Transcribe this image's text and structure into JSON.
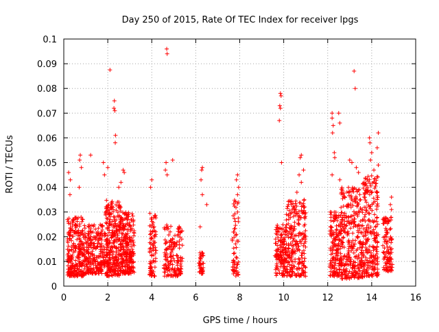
{
  "chart_data": {
    "type": "scatter",
    "title": "Day 250 of 2015, Rate Of TEC Index for receiver lpgs",
    "xlabel": "GPS time / hours",
    "ylabel": "ROTI / TECUs",
    "xlim": [
      0,
      16
    ],
    "ylim": [
      0,
      0.1
    ],
    "x_ticks": [
      0,
      2,
      4,
      6,
      8,
      10,
      12,
      14,
      16
    ],
    "y_ticks": [
      0,
      0.01,
      0.02,
      0.03,
      0.04,
      0.05,
      0.06,
      0.07,
      0.08,
      0.09,
      0.1
    ],
    "grid": true,
    "marker": "+",
    "marker_color": "#ff0000",
    "series": [
      {
        "name": "lpgs ROTI",
        "dense_clusters": [
          {
            "x_range": [
              0.15,
              0.9
            ],
            "y_range": [
              0.004,
              0.028
            ],
            "count": 260
          },
          {
            "x_range": [
              0.9,
              1.9
            ],
            "y_range": [
              0.005,
              0.025
            ],
            "count": 260
          },
          {
            "x_range": [
              1.9,
              2.6
            ],
            "y_range": [
              0.004,
              0.035
            ],
            "count": 300
          },
          {
            "x_range": [
              2.6,
              3.2
            ],
            "y_range": [
              0.005,
              0.03
            ],
            "count": 240
          },
          {
            "x_range": [
              3.9,
              4.2
            ],
            "y_range": [
              0.004,
              0.03
            ],
            "count": 80
          },
          {
            "x_range": [
              4.55,
              5.4
            ],
            "y_range": [
              0.004,
              0.025
            ],
            "count": 160
          },
          {
            "x_range": [
              6.15,
              6.35
            ],
            "y_range": [
              0.005,
              0.014
            ],
            "count": 40
          },
          {
            "x_range": [
              7.65,
              7.95
            ],
            "y_range": [
              0.004,
              0.035
            ],
            "count": 60
          },
          {
            "x_range": [
              9.6,
              10.1
            ],
            "y_range": [
              0.004,
              0.025
            ],
            "count": 140
          },
          {
            "x_range": [
              10.1,
              11.0
            ],
            "y_range": [
              0.004,
              0.035
            ],
            "count": 260
          },
          {
            "x_range": [
              12.1,
              12.6
            ],
            "y_range": [
              0.004,
              0.03
            ],
            "count": 160
          },
          {
            "x_range": [
              12.6,
              13.6
            ],
            "y_range": [
              0.003,
              0.04
            ],
            "count": 320
          },
          {
            "x_range": [
              13.6,
              14.3
            ],
            "y_range": [
              0.004,
              0.045
            ],
            "count": 240
          },
          {
            "x_range": [
              14.5,
              14.95
            ],
            "y_range": [
              0.006,
              0.028
            ],
            "count": 110
          }
        ],
        "points": [
          [
            0.22,
            0.046
          ],
          [
            0.3,
            0.043
          ],
          [
            0.28,
            0.037
          ],
          [
            0.75,
            0.053
          ],
          [
            0.72,
            0.051
          ],
          [
            0.8,
            0.048
          ],
          [
            0.7,
            0.04
          ],
          [
            1.22,
            0.053
          ],
          [
            1.8,
            0.05
          ],
          [
            2.1,
            0.0875
          ],
          [
            2.3,
            0.075
          ],
          [
            2.28,
            0.072
          ],
          [
            2.32,
            0.071
          ],
          [
            2.35,
            0.061
          ],
          [
            2.34,
            0.058
          ],
          [
            1.85,
            0.045
          ],
          [
            2.0,
            0.048
          ],
          [
            2.7,
            0.047
          ],
          [
            2.75,
            0.046
          ],
          [
            2.6,
            0.042
          ],
          [
            2.5,
            0.04
          ],
          [
            4.0,
            0.043
          ],
          [
            3.95,
            0.04
          ],
          [
            4.68,
            0.096
          ],
          [
            4.7,
            0.094
          ],
          [
            4.65,
            0.05
          ],
          [
            4.62,
            0.047
          ],
          [
            4.95,
            0.051
          ],
          [
            4.7,
            0.045
          ],
          [
            6.3,
            0.048
          ],
          [
            6.27,
            0.047
          ],
          [
            6.24,
            0.043
          ],
          [
            6.3,
            0.037
          ],
          [
            6.2,
            0.024
          ],
          [
            6.5,
            0.033
          ],
          [
            7.9,
            0.045
          ],
          [
            7.85,
            0.043
          ],
          [
            7.95,
            0.04
          ],
          [
            7.9,
            0.037
          ],
          [
            7.8,
            0.034
          ],
          [
            7.9,
            0.03
          ],
          [
            9.85,
            0.078
          ],
          [
            9.88,
            0.077
          ],
          [
            9.82,
            0.073
          ],
          [
            9.85,
            0.072
          ],
          [
            9.8,
            0.067
          ],
          [
            9.9,
            0.05
          ],
          [
            10.8,
            0.053
          ],
          [
            10.75,
            0.052
          ],
          [
            10.9,
            0.047
          ],
          [
            10.7,
            0.045
          ],
          [
            10.8,
            0.042
          ],
          [
            10.6,
            0.038
          ],
          [
            12.2,
            0.07
          ],
          [
            12.2,
            0.068
          ],
          [
            12.25,
            0.065
          ],
          [
            12.22,
            0.062
          ],
          [
            12.5,
            0.07
          ],
          [
            12.55,
            0.066
          ],
          [
            12.3,
            0.054
          ],
          [
            12.32,
            0.052
          ],
          [
            12.2,
            0.045
          ],
          [
            12.55,
            0.043
          ],
          [
            13.2,
            0.087
          ],
          [
            13.25,
            0.08
          ],
          [
            13.1,
            0.05
          ],
          [
            13.3,
            0.048
          ],
          [
            13.0,
            0.051
          ],
          [
            13.4,
            0.046
          ],
          [
            13.9,
            0.06
          ],
          [
            13.92,
            0.058
          ],
          [
            14.3,
            0.062
          ],
          [
            14.25,
            0.056
          ],
          [
            14.0,
            0.054
          ],
          [
            13.95,
            0.051
          ],
          [
            14.3,
            0.049
          ],
          [
            14.1,
            0.047
          ],
          [
            14.9,
            0.036
          ],
          [
            14.85,
            0.033
          ],
          [
            14.9,
            0.031
          ]
        ]
      }
    ]
  }
}
